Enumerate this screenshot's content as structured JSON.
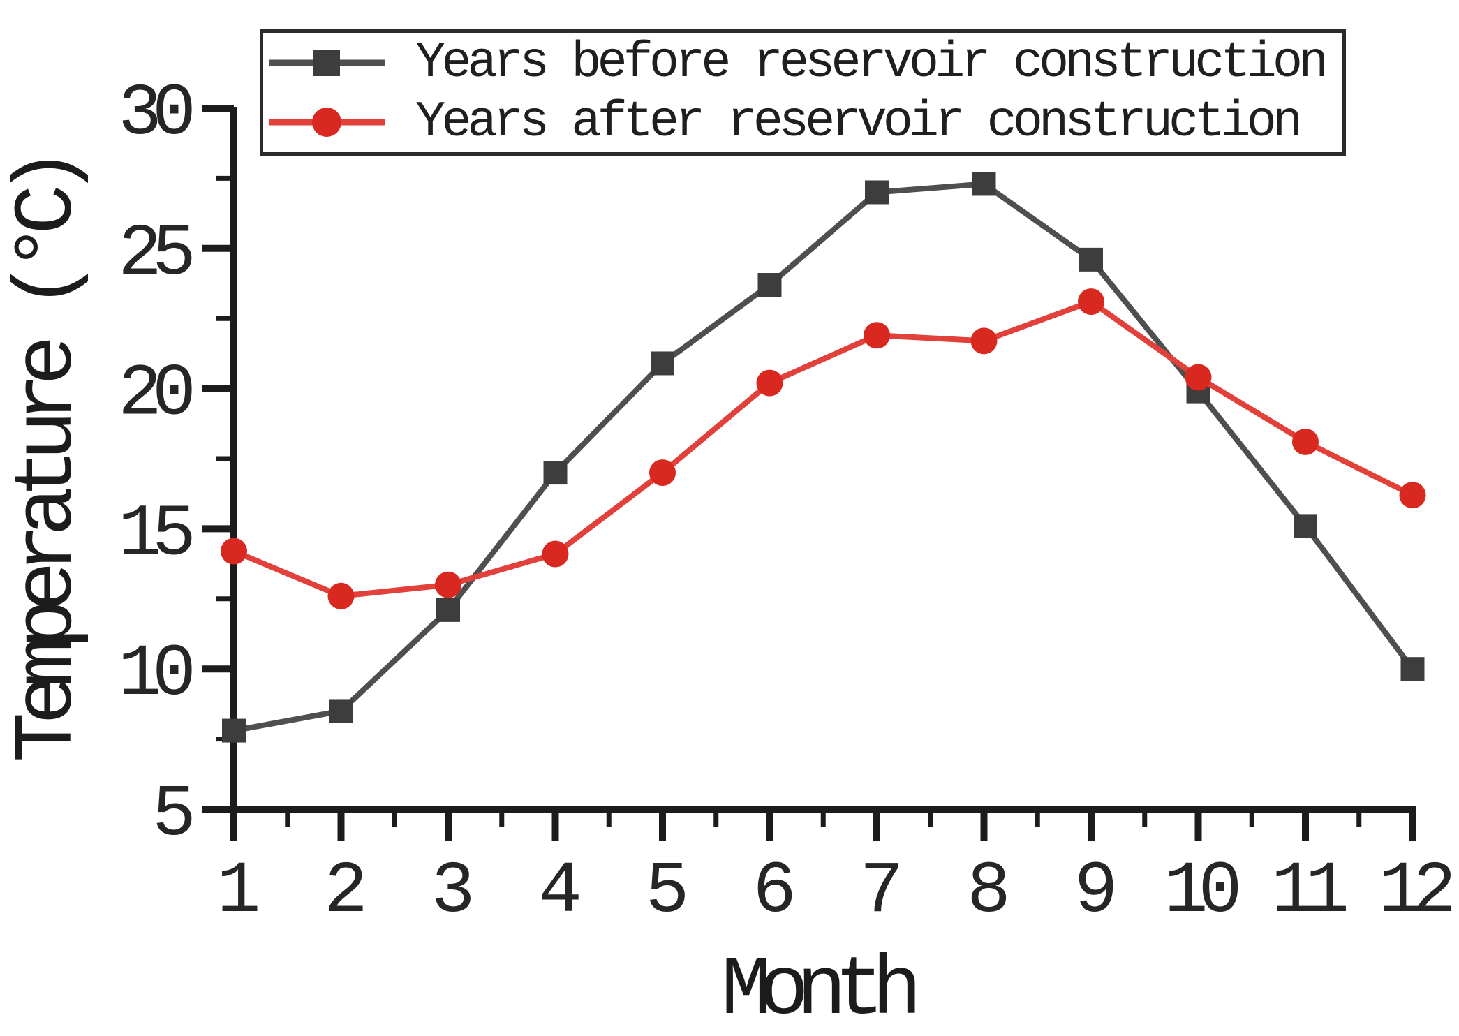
{
  "chart_data": {
    "type": "line",
    "title": "",
    "xlabel": "Month",
    "ylabel": "Temperature (°C)",
    "x": [
      1,
      2,
      3,
      4,
      5,
      6,
      7,
      8,
      9,
      10,
      11,
      12
    ],
    "x_ticks": [
      1,
      2,
      3,
      4,
      5,
      6,
      7,
      8,
      9,
      10,
      11,
      12
    ],
    "x_minor_ticks": [
      1.5,
      2.5,
      3.5,
      4.5,
      5.5,
      6.5,
      7.5,
      8.5,
      9.5,
      10.5,
      11.5
    ],
    "y_ticks": [
      5,
      10,
      15,
      20,
      25,
      30
    ],
    "y_minor_ticks": [
      7.5,
      12.5,
      17.5,
      22.5,
      27.5
    ],
    "xlim": [
      1,
      12
    ],
    "ylim": [
      5,
      30
    ],
    "grid": false,
    "legend_position": "top-center-boxed",
    "axis_color": "#1c1c1c",
    "text_color": "#262626",
    "series": [
      {
        "name": "Years before reservoir construction",
        "marker": "square",
        "line_color": "#4f4f4f",
        "marker_color": "#3d3d3d",
        "values": [
          7.8,
          8.5,
          12.1,
          17.0,
          20.9,
          23.7,
          27.0,
          27.3,
          24.6,
          19.9,
          15.1,
          10.0
        ]
      },
      {
        "name": "Years after reservoir construction",
        "marker": "circle",
        "line_color": "#e2403a",
        "marker_color": "#d8281f",
        "values": [
          14.2,
          12.6,
          13.0,
          14.1,
          17.0,
          20.2,
          21.9,
          21.7,
          23.1,
          20.4,
          18.1,
          16.2
        ]
      }
    ]
  }
}
